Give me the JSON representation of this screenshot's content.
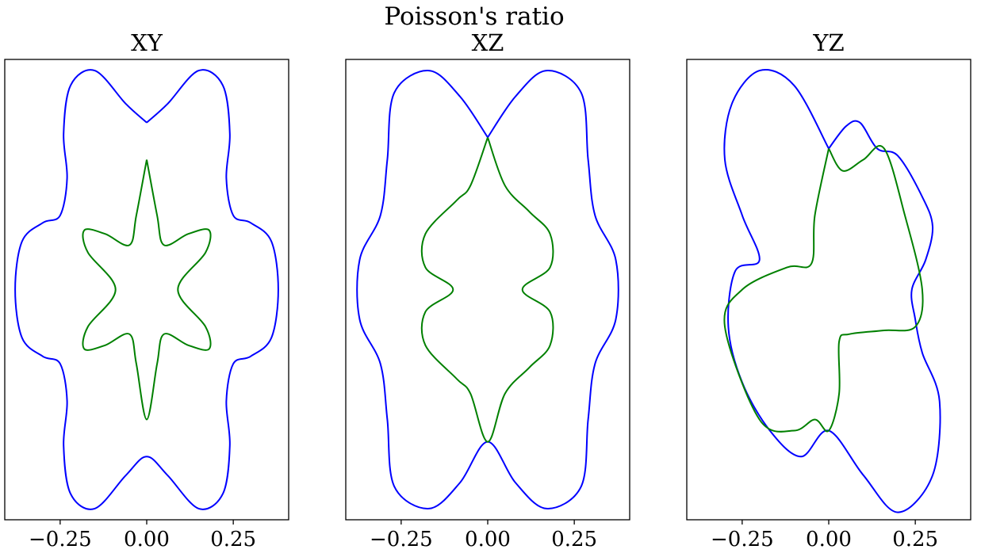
{
  "suptitle": "Poisson's ratio",
  "chart_data": [
    {
      "type": "line",
      "title": "XY",
      "xticks": [
        -0.25,
        0.0,
        0.25
      ],
      "xtick_labels": [
        "−0.25",
        "0.00",
        "0.25"
      ],
      "xlim": [
        -0.41,
        0.41
      ],
      "ylim": [
        -0.62,
        0.62
      ],
      "yticks": [],
      "series": [
        {
          "color": "#0000ff",
          "points": [
            [
              0.0,
              0.45
            ],
            [
              0.06,
              0.5
            ],
            [
              0.15,
              0.59
            ],
            [
              0.22,
              0.55
            ],
            [
              0.24,
              0.42
            ],
            [
              0.23,
              0.3
            ],
            [
              0.25,
              0.2
            ],
            [
              0.3,
              0.18
            ],
            [
              0.36,
              0.13
            ],
            [
              0.38,
              0.0
            ],
            [
              0.36,
              -0.13
            ],
            [
              0.3,
              -0.18
            ],
            [
              0.25,
              -0.2
            ],
            [
              0.23,
              -0.3
            ],
            [
              0.24,
              -0.42
            ],
            [
              0.22,
              -0.55
            ],
            [
              0.15,
              -0.59
            ],
            [
              0.06,
              -0.5
            ],
            [
              0.0,
              -0.45
            ],
            [
              -0.06,
              -0.5
            ],
            [
              -0.15,
              -0.59
            ],
            [
              -0.22,
              -0.55
            ],
            [
              -0.24,
              -0.42
            ],
            [
              -0.23,
              -0.3
            ],
            [
              -0.25,
              -0.2
            ],
            [
              -0.3,
              -0.18
            ],
            [
              -0.36,
              -0.13
            ],
            [
              -0.38,
              0.0
            ],
            [
              -0.36,
              0.13
            ],
            [
              -0.3,
              0.18
            ],
            [
              -0.25,
              0.2
            ],
            [
              -0.23,
              0.3
            ],
            [
              -0.24,
              0.42
            ],
            [
              -0.22,
              0.55
            ],
            [
              -0.15,
              0.59
            ],
            [
              -0.06,
              0.5
            ],
            [
              0.0,
              0.45
            ]
          ]
        },
        {
          "color": "#008000",
          "points": [
            [
              0.0,
              0.35
            ],
            [
              0.03,
              0.2
            ],
            [
              0.05,
              0.12
            ],
            [
              0.12,
              0.15
            ],
            [
              0.18,
              0.16
            ],
            [
              0.17,
              0.1
            ],
            [
              0.09,
              0.0
            ],
            [
              0.17,
              -0.1
            ],
            [
              0.18,
              -0.16
            ],
            [
              0.12,
              -0.15
            ],
            [
              0.05,
              -0.12
            ],
            [
              0.03,
              -0.2
            ],
            [
              0.0,
              -0.35
            ],
            [
              -0.03,
              -0.2
            ],
            [
              -0.05,
              -0.12
            ],
            [
              -0.12,
              -0.15
            ],
            [
              -0.18,
              -0.16
            ],
            [
              -0.17,
              -0.1
            ],
            [
              -0.09,
              0.0
            ],
            [
              -0.17,
              0.1
            ],
            [
              -0.18,
              0.16
            ],
            [
              -0.12,
              0.15
            ],
            [
              -0.05,
              0.12
            ],
            [
              -0.03,
              0.2
            ],
            [
              0.0,
              0.35
            ]
          ]
        }
      ]
    },
    {
      "type": "line",
      "title": "XZ",
      "xticks": [
        -0.25,
        0.0,
        0.25
      ],
      "xtick_labels": [
        "−0.25",
        "0.00",
        "0.25"
      ],
      "xlim": [
        -0.41,
        0.41
      ],
      "ylim": [
        -0.62,
        0.62
      ],
      "yticks": [],
      "series": [
        {
          "color": "#0000ff",
          "points": [
            [
              0.0,
              0.41
            ],
            [
              0.08,
              0.52
            ],
            [
              0.17,
              0.59
            ],
            [
              0.27,
              0.53
            ],
            [
              0.29,
              0.35
            ],
            [
              0.31,
              0.2
            ],
            [
              0.37,
              0.08
            ],
            [
              0.37,
              -0.08
            ],
            [
              0.31,
              -0.2
            ],
            [
              0.29,
              -0.35
            ],
            [
              0.27,
              -0.53
            ],
            [
              0.17,
              -0.59
            ],
            [
              0.08,
              -0.52
            ],
            [
              0.0,
              -0.41
            ],
            [
              -0.08,
              -0.52
            ],
            [
              -0.17,
              -0.59
            ],
            [
              -0.27,
              -0.53
            ],
            [
              -0.29,
              -0.35
            ],
            [
              -0.31,
              -0.2
            ],
            [
              -0.37,
              -0.08
            ],
            [
              -0.37,
              0.08
            ],
            [
              -0.31,
              0.2
            ],
            [
              -0.29,
              0.35
            ],
            [
              -0.27,
              0.53
            ],
            [
              -0.17,
              0.59
            ],
            [
              -0.08,
              0.52
            ],
            [
              0.0,
              0.41
            ]
          ]
        },
        {
          "color": "#008000",
          "points": [
            [
              0.0,
              0.41
            ],
            [
              0.05,
              0.28
            ],
            [
              0.12,
              0.21
            ],
            [
              0.18,
              0.15
            ],
            [
              0.18,
              0.06
            ],
            [
              0.1,
              0.0
            ],
            [
              0.18,
              -0.06
            ],
            [
              0.18,
              -0.15
            ],
            [
              0.12,
              -0.21
            ],
            [
              0.05,
              -0.28
            ],
            [
              0.0,
              -0.41
            ],
            [
              -0.05,
              -0.28
            ],
            [
              -0.09,
              -0.24
            ],
            [
              -0.18,
              -0.15
            ],
            [
              -0.18,
              -0.06
            ],
            [
              -0.1,
              0.0
            ],
            [
              -0.18,
              0.06
            ],
            [
              -0.18,
              0.15
            ],
            [
              -0.09,
              0.24
            ],
            [
              -0.05,
              0.28
            ],
            [
              0.0,
              0.41
            ]
          ]
        }
      ]
    },
    {
      "type": "line",
      "title": "YZ",
      "xticks": [
        -0.25,
        0.0,
        0.25
      ],
      "xtick_labels": [
        "−0.25",
        "0.00",
        "0.25"
      ],
      "xlim": [
        -0.41,
        0.41
      ],
      "ylim": [
        -0.62,
        0.62
      ],
      "yticks": [],
      "series": [
        {
          "color": "#0000ff",
          "points": [
            [
              0.0,
              0.38
            ],
            [
              0.05,
              0.44
            ],
            [
              0.09,
              0.45
            ],
            [
              0.14,
              0.38
            ],
            [
              0.2,
              0.36
            ],
            [
              0.27,
              0.25
            ],
            [
              0.3,
              0.17
            ],
            [
              0.28,
              0.08
            ],
            [
              0.24,
              0.0
            ],
            [
              0.25,
              -0.08
            ],
            [
              0.27,
              -0.17
            ],
            [
              0.32,
              -0.3
            ],
            [
              0.3,
              -0.5
            ],
            [
              0.2,
              -0.6
            ],
            [
              0.1,
              -0.5
            ],
            [
              0.0,
              -0.38
            ],
            [
              -0.08,
              -0.45
            ],
            [
              -0.17,
              -0.38
            ],
            [
              -0.25,
              -0.25
            ],
            [
              -0.29,
              -0.1
            ],
            [
              -0.27,
              0.05
            ],
            [
              -0.2,
              0.08
            ],
            [
              -0.25,
              0.2
            ],
            [
              -0.3,
              0.35
            ],
            [
              -0.28,
              0.5
            ],
            [
              -0.2,
              0.59
            ],
            [
              -0.1,
              0.55
            ],
            [
              0.0,
              0.38
            ]
          ]
        },
        {
          "color": "#008000",
          "points": [
            [
              0.0,
              0.38
            ],
            [
              0.04,
              0.32
            ],
            [
              0.1,
              0.35
            ],
            [
              0.16,
              0.38
            ],
            [
              0.22,
              0.2
            ],
            [
              0.27,
              0.0
            ],
            [
              0.25,
              -0.1
            ],
            [
              0.16,
              -0.11
            ],
            [
              0.06,
              -0.12
            ],
            [
              0.03,
              -0.14
            ],
            [
              0.03,
              -0.28
            ],
            [
              0.0,
              -0.38
            ],
            [
              -0.04,
              -0.35
            ],
            [
              -0.1,
              -0.38
            ],
            [
              -0.2,
              -0.35
            ],
            [
              -0.3,
              -0.1
            ],
            [
              -0.25,
              0.0
            ],
            [
              -0.12,
              0.06
            ],
            [
              -0.05,
              0.07
            ],
            [
              -0.04,
              0.2
            ],
            [
              0.0,
              0.38
            ]
          ]
        }
      ]
    }
  ]
}
